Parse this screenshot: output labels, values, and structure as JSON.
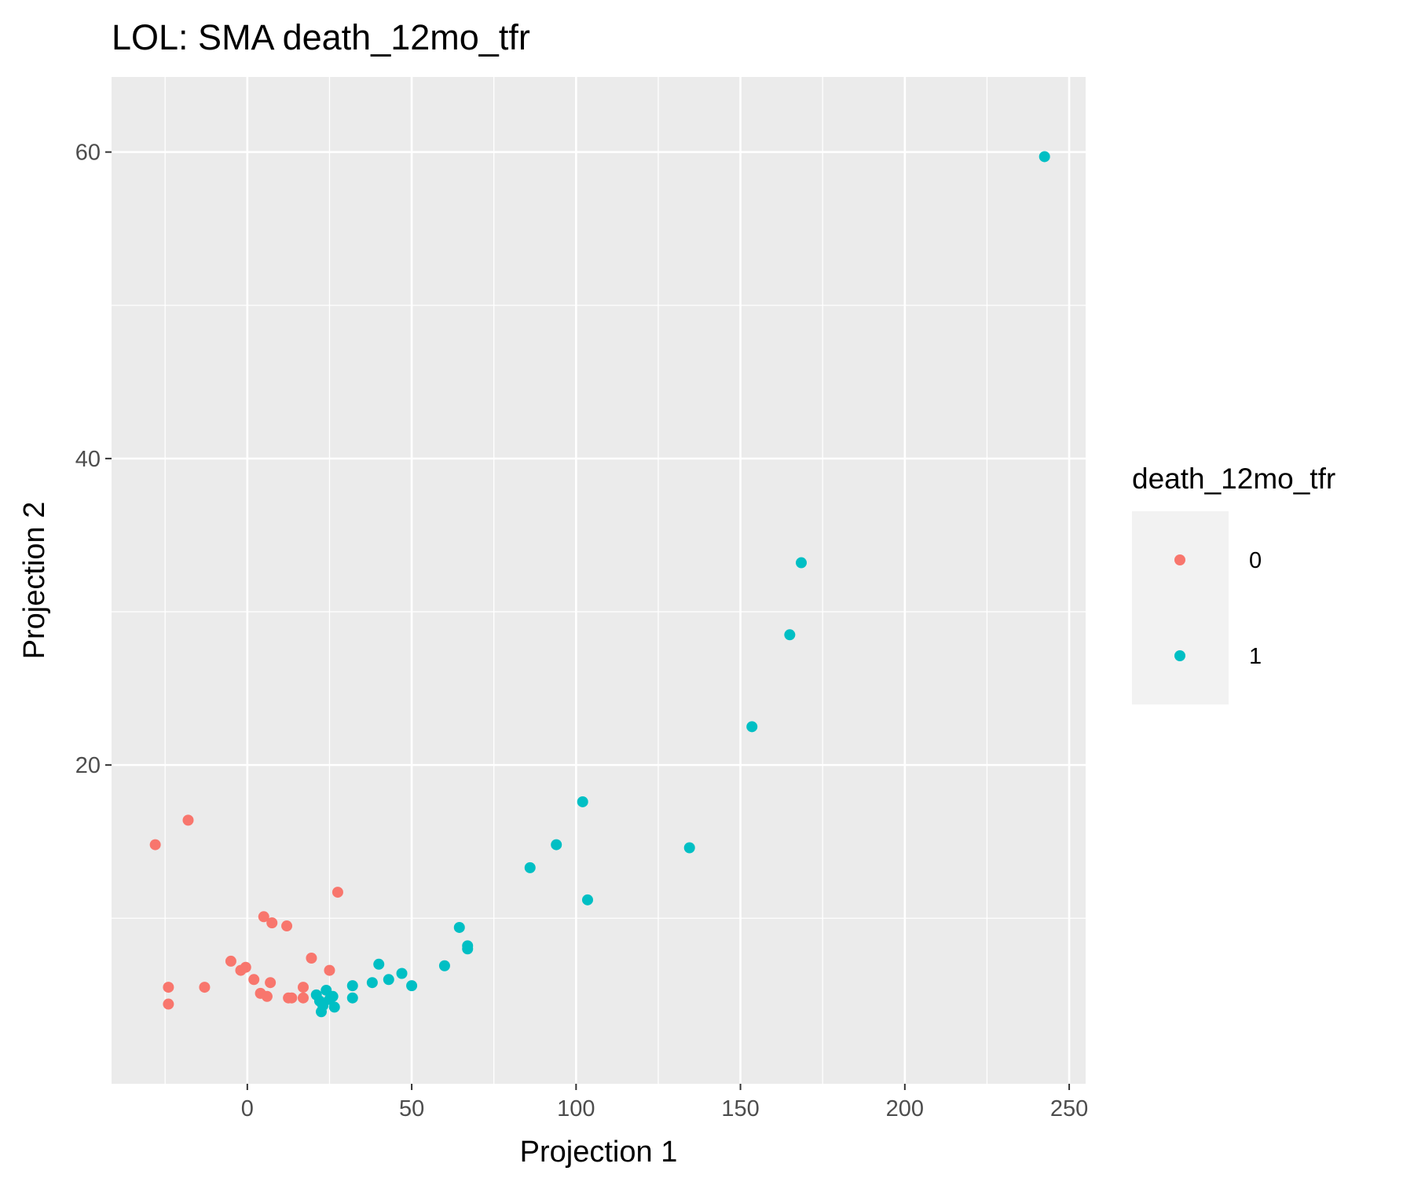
{
  "chart_data": {
    "type": "scatter",
    "title": "LOL: SMA death_12mo_tfr",
    "xlabel": "Projection 1",
    "ylabel": "Projection 2",
    "xlim": [
      -41.3,
      255
    ],
    "ylim": [
      -0.8,
      64.9
    ],
    "x_ticks": [
      0,
      50,
      100,
      150,
      200,
      250
    ],
    "y_ticks": [
      20,
      40,
      60
    ],
    "x_tick_labels": [
      "0",
      "50",
      "100",
      "150",
      "200",
      "250"
    ],
    "y_tick_labels": [
      "20",
      "40",
      "60"
    ],
    "grid": true,
    "legend": {
      "title": "death_12mo_tfr",
      "position": "right",
      "entries": [
        {
          "label": "0",
          "color": "#F8766D"
        },
        {
          "label": "1",
          "color": "#00BFC4"
        }
      ]
    },
    "series": [
      {
        "name": "0",
        "color": "#F8766D",
        "points": [
          [
            -28,
            14.8
          ],
          [
            -18,
            16.4
          ],
          [
            -24,
            5.5
          ],
          [
            -24,
            4.4
          ],
          [
            -13,
            5.5
          ],
          [
            -5,
            7.2
          ],
          [
            -2,
            6.6
          ],
          [
            -0.5,
            6.8
          ],
          [
            2,
            6.0
          ],
          [
            4,
            5.1
          ],
          [
            6,
            4.9
          ],
          [
            7,
            5.8
          ],
          [
            5,
            10.1
          ],
          [
            7.5,
            9.7
          ],
          [
            12,
            9.5
          ],
          [
            12.5,
            4.8
          ],
          [
            13.5,
            4.8
          ],
          [
            17,
            5.5
          ],
          [
            17,
            4.8
          ],
          [
            19.5,
            7.4
          ],
          [
            25,
            6.6
          ],
          [
            27.5,
            11.7
          ]
        ]
      },
      {
        "name": "1",
        "color": "#00BFC4",
        "points": [
          [
            21,
            5.0
          ],
          [
            22,
            4.6
          ],
          [
            23,
            4.3
          ],
          [
            22.5,
            3.9
          ],
          [
            24,
            5.3
          ],
          [
            25,
            4.7
          ],
          [
            26,
            4.9
          ],
          [
            26.5,
            4.2
          ],
          [
            32,
            5.6
          ],
          [
            32,
            4.8
          ],
          [
            38,
            5.8
          ],
          [
            40,
            7.0
          ],
          [
            43,
            6.0
          ],
          [
            47,
            6.4
          ],
          [
            50,
            5.6
          ],
          [
            60,
            6.9
          ],
          [
            64.5,
            9.4
          ],
          [
            67,
            8.2
          ],
          [
            67,
            8.0
          ],
          [
            86,
            13.3
          ],
          [
            94,
            14.8
          ],
          [
            102,
            17.6
          ],
          [
            103.5,
            11.2
          ],
          [
            134.5,
            14.6
          ],
          [
            153.5,
            22.5
          ],
          [
            165,
            28.5
          ],
          [
            168.5,
            33.2
          ],
          [
            242.5,
            59.7
          ]
        ]
      }
    ]
  }
}
